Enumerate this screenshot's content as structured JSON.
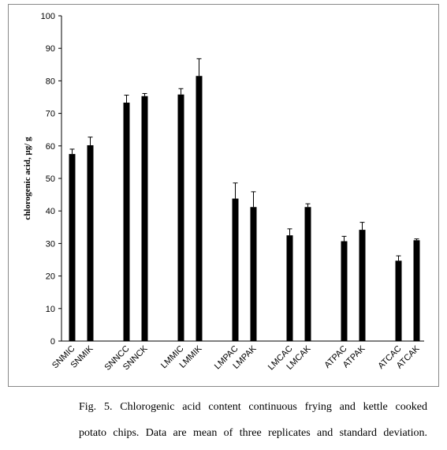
{
  "chart_data": {
    "type": "bar",
    "y_label": "chlorogenic acid, µg/ g",
    "categories": [
      "SNMIC",
      "SNMIK",
      null,
      "SNNCC",
      "SNNCK",
      null,
      "LMMIC",
      "LMMIK",
      null,
      "LMPAC",
      "LMPAK",
      null,
      "LMCAC",
      "LMCAK",
      null,
      "ATPAC",
      "ATPAK",
      null,
      "ATCAC",
      "ATCAK"
    ],
    "values": [
      57.5,
      60.2,
      null,
      73.3,
      75.3,
      null,
      75.8,
      81.5,
      null,
      43.8,
      41.2,
      null,
      32.5,
      41.2,
      null,
      30.7,
      34.2,
      null,
      24.7,
      31.0
    ],
    "errors": [
      1.5,
      2.5,
      null,
      2.3,
      0.8,
      null,
      1.8,
      5.3,
      null,
      4.8,
      4.7,
      null,
      2.0,
      1.0,
      null,
      1.5,
      2.3,
      null,
      1.5,
      0.4
    ],
    "color": "#000000",
    "ylim": [
      0,
      100
    ],
    "yticks": [
      0,
      10,
      20,
      30,
      40,
      50,
      60,
      70,
      80,
      90,
      100
    ]
  },
  "caption": [
    "Fig. 5. Chlorogenic  acid content continuous  frying  and kettle cooked",
    "potato chips.  Data are mean of three replicates and standard deviation."
  ]
}
